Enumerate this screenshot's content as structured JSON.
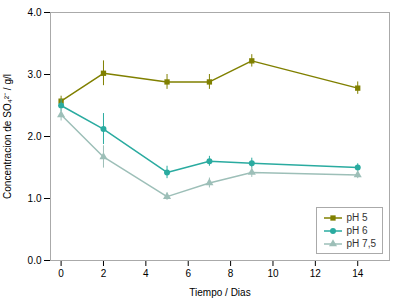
{
  "chart_data": {
    "type": "line",
    "x": [
      0,
      2,
      5,
      7,
      9,
      14
    ],
    "series": [
      {
        "name": "pH 5",
        "color": "#808000",
        "marker": "square",
        "values": [
          2.57,
          3.02,
          2.88,
          2.88,
          3.22,
          2.78
        ],
        "errors": [
          0.08,
          0.2,
          0.12,
          0.12,
          0.1,
          0.1
        ]
      },
      {
        "name": "pH 6",
        "color": "#2aaba0",
        "marker": "circle",
        "values": [
          2.5,
          2.12,
          1.42,
          1.6,
          1.57,
          1.5
        ],
        "errors": [
          0.1,
          0.25,
          0.1,
          0.08,
          0.08,
          0.06
        ]
      },
      {
        "name": "pH 7,5",
        "color": "#9dbfb8",
        "marker": "triangle",
        "values": [
          2.35,
          1.67,
          1.03,
          1.25,
          1.42,
          1.38
        ],
        "errors": [
          0.1,
          0.18,
          0.06,
          0.08,
          0.08,
          0.06
        ]
      }
    ],
    "xlabel": "Tiempo / Dias",
    "ylabel": "Concentracion de SO₄²⁻ / g/l",
    "xlim": [
      -0.5,
      15.5
    ],
    "ylim": [
      0,
      4
    ],
    "xticks": [
      0,
      2,
      4,
      6,
      8,
      10,
      12,
      14
    ],
    "yticks": [
      0,
      1,
      2,
      3,
      4
    ],
    "grid": false,
    "legend": "lower right"
  }
}
